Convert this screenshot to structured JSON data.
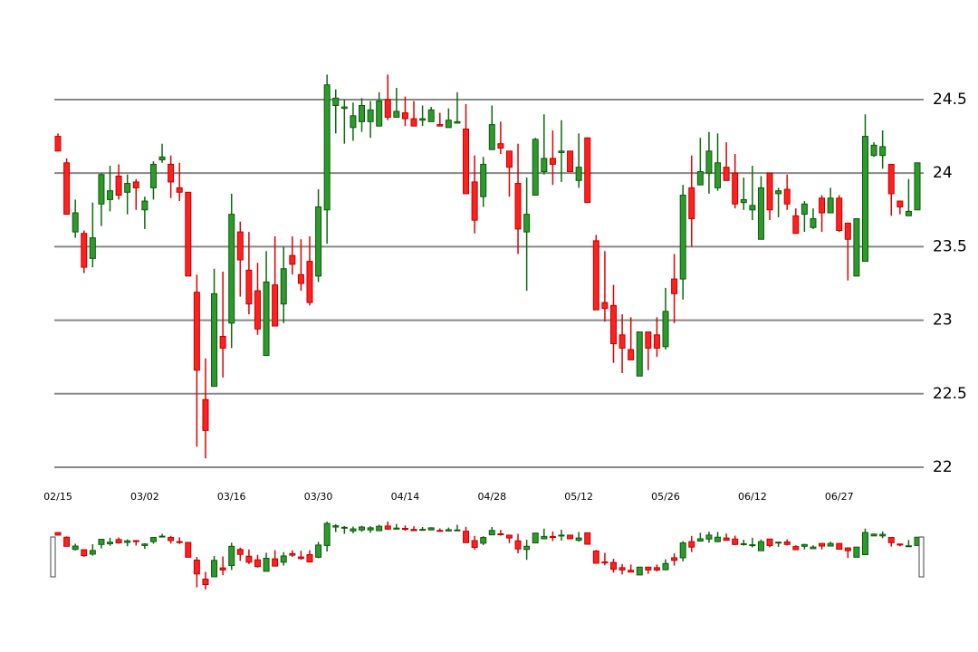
{
  "chart_data": {
    "type": "candlestick",
    "categories": [
      "02/15",
      null,
      null,
      null,
      null,
      null,
      null,
      null,
      null,
      null,
      "03/02",
      null,
      null,
      null,
      null,
      null,
      null,
      null,
      null,
      null,
      "03/16",
      null,
      null,
      null,
      null,
      null,
      null,
      null,
      null,
      null,
      "03/30",
      null,
      null,
      null,
      null,
      null,
      null,
      null,
      null,
      null,
      "04/14",
      null,
      null,
      null,
      null,
      null,
      null,
      null,
      null,
      null,
      "04/28",
      null,
      null,
      null,
      null,
      null,
      null,
      null,
      null,
      null,
      "05/12",
      null,
      null,
      null,
      null,
      null,
      null,
      null,
      null,
      null,
      "05/26",
      null,
      null,
      null,
      null,
      null,
      null,
      null,
      null,
      null,
      "06/12",
      null,
      null,
      null,
      null,
      null,
      null,
      null,
      null,
      null,
      "06/27",
      null,
      null,
      null,
      null,
      null,
      null,
      null,
      null,
      null
    ],
    "open": [
      24.25,
      24.07,
      23.6,
      23.59,
      23.42,
      23.79,
      23.82,
      23.98,
      23.87,
      23.94,
      23.75,
      23.9,
      24.09,
      24.06,
      23.9,
      23.87,
      23.19,
      22.46,
      22.55,
      22.89,
      22.98,
      23.6,
      23.34,
      23.2,
      22.76,
      23.24,
      23.11,
      23.44,
      23.31,
      23.4,
      23.3,
      23.75,
      24.46,
      24.44,
      24.31,
      24.35,
      24.35,
      24.32,
      24.5,
      24.38,
      24.41,
      24.37,
      24.36,
      24.35,
      24.33,
      24.31,
      24.34,
      24.3,
      23.94,
      23.84,
      24.16,
      24.2,
      24.15,
      23.93,
      23.6,
      23.85,
      24.01,
      24.1,
      24.14,
      24.15,
      23.95,
      24.24,
      23.54,
      23.12,
      23.1,
      22.9,
      22.8,
      22.62,
      22.92,
      22.9,
      22.82,
      23.28,
      23.28,
      23.9,
      23.92,
      24.0,
      23.9,
      24.04,
      24.0,
      23.8,
      23.75,
      23.55,
      24.0,
      23.86,
      23.89,
      23.71,
      23.72,
      23.63,
      23.83,
      23.73,
      23.83,
      23.66,
      23.3,
      23.4,
      24.12,
      24.12,
      24.06,
      23.81,
      23.71,
      23.75
    ],
    "high": [
      24.27,
      24.1,
      23.82,
      23.61,
      23.8,
      24.0,
      24.05,
      24.06,
      23.99,
      23.96,
      23.84,
      24.08,
      24.2,
      24.12,
      24.07,
      23.87,
      23.31,
      22.74,
      23.35,
      23.33,
      23.86,
      23.67,
      23.6,
      23.39,
      23.47,
      23.57,
      23.5,
      23.57,
      23.55,
      23.57,
      23.89,
      24.67,
      24.57,
      24.5,
      24.48,
      24.51,
      24.49,
      24.55,
      24.67,
      24.58,
      24.52,
      24.49,
      24.46,
      24.45,
      24.41,
      24.44,
      24.55,
      24.47,
      24.12,
      24.11,
      24.46,
      24.35,
      24.15,
      24.2,
      23.97,
      24.24,
      24.4,
      24.29,
      24.36,
      24.15,
      24.27,
      24.24,
      23.58,
      23.47,
      23.24,
      23.04,
      23.02,
      22.92,
      22.92,
      23.02,
      23.22,
      23.45,
      23.92,
      24.12,
      24.24,
      24.28,
      24.27,
      24.21,
      24.13,
      23.97,
      24.05,
      23.98,
      24.0,
      23.9,
      23.99,
      23.76,
      23.81,
      23.76,
      23.85,
      23.9,
      23.85,
      23.66,
      23.69,
      24.4,
      24.21,
      24.29,
      24.06,
      23.81,
      23.96,
      24.07
    ],
    "low": [
      24.15,
      23.72,
      23.56,
      23.32,
      23.36,
      23.64,
      23.74,
      23.82,
      23.72,
      23.75,
      23.62,
      23.82,
      24.07,
      23.83,
      23.81,
      23.3,
      22.14,
      22.06,
      22.55,
      22.61,
      22.81,
      23.16,
      23.04,
      22.9,
      22.76,
      22.96,
      22.98,
      23.31,
      23.2,
      23.1,
      23.26,
      23.52,
      24.27,
      24.2,
      24.22,
      24.28,
      24.24,
      24.32,
      24.36,
      24.38,
      24.32,
      24.32,
      24.32,
      24.35,
      24.32,
      24.31,
      24.34,
      23.86,
      23.59,
      23.77,
      24.16,
      24.13,
      23.84,
      23.45,
      23.2,
      23.85,
      23.99,
      23.92,
      23.94,
      24.01,
      23.9,
      23.8,
      23.07,
      22.99,
      22.71,
      22.64,
      22.73,
      22.62,
      22.66,
      22.75,
      22.8,
      22.98,
      23.14,
      23.5,
      23.92,
      23.86,
      23.88,
      23.95,
      23.76,
      23.75,
      23.68,
      23.55,
      23.68,
      23.7,
      23.75,
      23.59,
      23.6,
      23.62,
      23.6,
      23.73,
      23.6,
      23.27,
      23.3,
      23.4,
      24.11,
      24.03,
      23.71,
      23.72,
      23.71,
      23.75
    ],
    "close": [
      24.15,
      23.72,
      23.73,
      23.36,
      23.56,
      23.99,
      23.88,
      23.85,
      23.93,
      23.9,
      23.81,
      24.06,
      24.11,
      23.94,
      23.87,
      23.3,
      22.66,
      22.25,
      23.18,
      22.81,
      23.72,
      23.41,
      23.11,
      22.94,
      23.26,
      22.96,
      23.35,
      23.38,
      23.25,
      23.12,
      23.77,
      24.6,
      24.51,
      24.45,
      24.39,
      24.46,
      24.43,
      24.49,
      24.38,
      24.42,
      24.37,
      24.32,
      24.37,
      24.43,
      24.32,
      24.36,
      24.35,
      23.86,
      23.68,
      24.06,
      24.33,
      24.17,
      24.04,
      23.62,
      23.72,
      24.23,
      24.1,
      24.06,
      24.15,
      24.01,
      24.04,
      23.8,
      23.07,
      23.08,
      22.84,
      22.81,
      22.73,
      22.92,
      22.81,
      22.81,
      23.06,
      23.18,
      23.85,
      23.69,
      24.01,
      24.15,
      24.07,
      23.95,
      23.79,
      23.82,
      23.78,
      23.9,
      23.75,
      23.88,
      23.79,
      23.59,
      23.79,
      23.69,
      23.73,
      23.83,
      23.61,
      23.55,
      23.69,
      24.25,
      24.19,
      24.18,
      23.86,
      23.77,
      23.74,
      24.07
    ],
    "up_color": "#2e9a2e",
    "down_color": "#ff2020",
    "ylim": [
      21.9,
      24.7
    ],
    "yticks": [
      22,
      22.5,
      23,
      23.5,
      24,
      24.5
    ],
    "grid": true
  }
}
